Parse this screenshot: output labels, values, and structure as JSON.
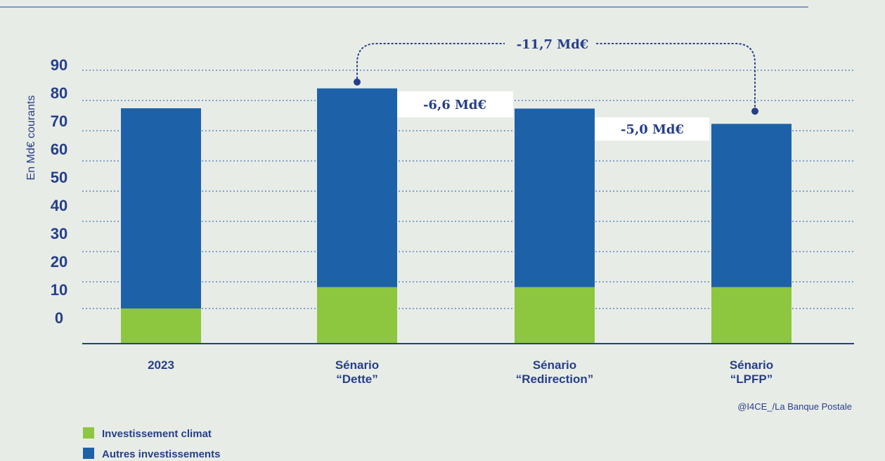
{
  "chart_data": {
    "type": "bar",
    "stacked": true,
    "categories": [
      "2023",
      "Sénario\n“Dette”",
      "Sénario\n“Redirection”",
      "Sénario\n“LPFP”"
    ],
    "series": [
      {
        "name": "Investissement climat",
        "values": [
          11.5,
          18.5,
          18.5,
          18.5
        ],
        "color": "#8dc63f"
      },
      {
        "name": "Autres investissements",
        "values": [
          65.5,
          65.0,
          58.4,
          53.4
        ],
        "color": "#1d62a8"
      }
    ],
    "ylabel": "En Md€ courants",
    "y_ticks": [
      "90",
      "80",
      "70",
      "60",
      "50",
      "40",
      "30",
      "20",
      "10",
      "0"
    ],
    "ylim": [
      0,
      90
    ],
    "grid": true,
    "legend_position": "bottom-left",
    "annotations": [
      {
        "text": "-11,7 Md€",
        "from": 1,
        "to": 3
      },
      {
        "text": "-6,6 Md€",
        "between": [
          1,
          2
        ]
      },
      {
        "text": "-5,0 Md€",
        "between": [
          2,
          3
        ]
      }
    ],
    "source": "@I4CE_/La Banque Postale"
  },
  "colors": {
    "accent": "#263f8a",
    "climat": "#8dc63f",
    "autres": "#1d62a8"
  }
}
